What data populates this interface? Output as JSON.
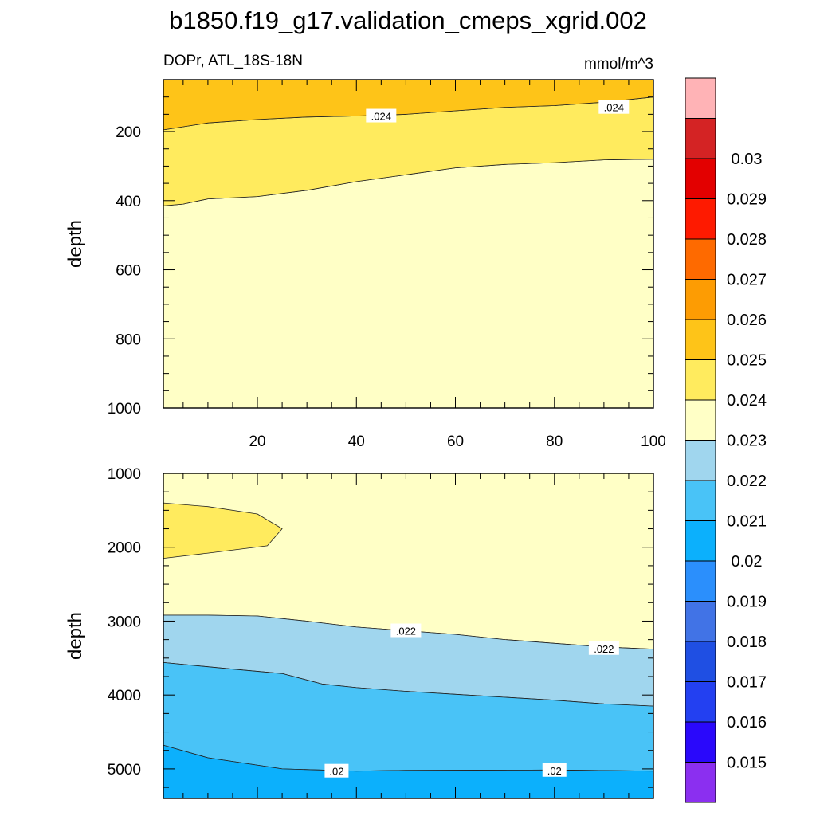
{
  "title": "b1850.f19_g17.validation_cmeps_xgrid.002",
  "chart_data": [
    {
      "type": "contour",
      "subtitle_left": "DOPr, ATL_18S-18N",
      "subtitle_right": "mmol/m^3",
      "ylabel": "depth",
      "xlim": [
        1,
        100
      ],
      "ylim": [
        1000,
        50
      ],
      "y_reversed": true,
      "x_ticks": [
        "20",
        "40",
        "60",
        "80",
        "100"
      ],
      "y_ticks": [
        "200",
        "400",
        "600",
        "800",
        "1000"
      ],
      "regions": [
        {
          "color": "#ffffc6",
          "polygon": [
            [
              1,
              1000
            ],
            [
              100,
              1000
            ],
            [
              100,
              280
            ],
            [
              90,
              282
            ],
            [
              80,
              290
            ],
            [
              70,
              295
            ],
            [
              60,
              305
            ],
            [
              50,
              325
            ],
            [
              40,
              345
            ],
            [
              30,
              370
            ],
            [
              20,
              388
            ],
            [
              10,
              395
            ],
            [
              5,
              410
            ],
            [
              1,
              415
            ]
          ]
        },
        {
          "color": "#ffeb5e",
          "polygon": [
            [
              1,
              415
            ],
            [
              5,
              410
            ],
            [
              10,
              395
            ],
            [
              20,
              388
            ],
            [
              30,
              370
            ],
            [
              40,
              345
            ],
            [
              50,
              325
            ],
            [
              60,
              305
            ],
            [
              70,
              295
            ],
            [
              80,
              290
            ],
            [
              90,
              282
            ],
            [
              100,
              280
            ],
            [
              100,
              100
            ],
            [
              90,
              115
            ],
            [
              80,
              125
            ],
            [
              70,
              130
            ],
            [
              60,
              140
            ],
            [
              50,
              150
            ],
            [
              40,
              155
            ],
            [
              30,
              158
            ],
            [
              20,
              165
            ],
            [
              10,
              175
            ],
            [
              1,
              195
            ]
          ]
        },
        {
          "color": "#fec418",
          "polygon": [
            [
              1,
              195
            ],
            [
              10,
              175
            ],
            [
              20,
              165
            ],
            [
              30,
              158
            ],
            [
              40,
              155
            ],
            [
              50,
              150
            ],
            [
              60,
              140
            ],
            [
              70,
              130
            ],
            [
              80,
              125
            ],
            [
              90,
              115
            ],
            [
              100,
              100
            ],
            [
              100,
              50
            ],
            [
              1,
              50
            ]
          ]
        }
      ],
      "contour_labels": [
        {
          "text": ".024",
          "x": 45,
          "y": 155
        },
        {
          "text": ".024",
          "x": 92,
          "y": 130
        }
      ]
    },
    {
      "type": "contour",
      "ylabel": "depth",
      "xlim": [
        1,
        100
      ],
      "ylim": [
        5400,
        1000
      ],
      "y_reversed": true,
      "y_ticks": [
        "1000",
        "2000",
        "3000",
        "4000",
        "5000"
      ],
      "regions": [
        {
          "color": "#ffffc6",
          "polygon": [
            [
              1,
              1000
            ],
            [
              100,
              1000
            ],
            [
              100,
              3380
            ],
            [
              90,
              3350
            ],
            [
              80,
              3300
            ],
            [
              70,
              3250
            ],
            [
              60,
              3180
            ],
            [
              50,
              3130
            ],
            [
              40,
              3080
            ],
            [
              30,
              3000
            ],
            [
              20,
              2930
            ],
            [
              10,
              2920
            ],
            [
              1,
              2920
            ]
          ]
        },
        {
          "color": "#ffeb5e",
          "polygon": [
            [
              1,
              1400
            ],
            [
              10,
              1450
            ],
            [
              20,
              1550
            ],
            [
              25,
              1750
            ],
            [
              22,
              1980
            ],
            [
              10,
              2080
            ],
            [
              1,
              2150
            ]
          ]
        },
        {
          "color": "#a0d6ee",
          "polygon": [
            [
              1,
              2920
            ],
            [
              10,
              2920
            ],
            [
              20,
              2930
            ],
            [
              30,
              3000
            ],
            [
              40,
              3080
            ],
            [
              50,
              3130
            ],
            [
              60,
              3180
            ],
            [
              70,
              3250
            ],
            [
              80,
              3300
            ],
            [
              90,
              3350
            ],
            [
              100,
              3380
            ],
            [
              100,
              4150
            ],
            [
              90,
              4120
            ],
            [
              80,
              4070
            ],
            [
              70,
              4030
            ],
            [
              60,
              3990
            ],
            [
              50,
              3950
            ],
            [
              40,
              3900
            ],
            [
              33,
              3850
            ],
            [
              25,
              3710
            ],
            [
              15,
              3650
            ],
            [
              1,
              3560
            ]
          ]
        },
        {
          "color": "#49c3f7",
          "polygon": [
            [
              1,
              3560
            ],
            [
              15,
              3650
            ],
            [
              25,
              3710
            ],
            [
              33,
              3850
            ],
            [
              40,
              3900
            ],
            [
              50,
              3950
            ],
            [
              60,
              3990
            ],
            [
              70,
              4030
            ],
            [
              80,
              4070
            ],
            [
              90,
              4120
            ],
            [
              100,
              4150
            ],
            [
              100,
              5030
            ],
            [
              80,
              5015
            ],
            [
              50,
              5020
            ],
            [
              40,
              5030
            ],
            [
              25,
              5000
            ],
            [
              10,
              4850
            ],
            [
              1,
              4680
            ]
          ]
        },
        {
          "color": "#0cb0fc",
          "polygon": [
            [
              1,
              4680
            ],
            [
              10,
              4850
            ],
            [
              25,
              5000
            ],
            [
              40,
              5030
            ],
            [
              50,
              5020
            ],
            [
              80,
              5015
            ],
            [
              100,
              5030
            ],
            [
              100,
              5400
            ],
            [
              1,
              5400
            ]
          ]
        }
      ],
      "contour_labels": [
        {
          "text": ".022",
          "x": 50,
          "y": 3130
        },
        {
          "text": ".022",
          "x": 90,
          "y": 3370
        },
        {
          "text": ".02",
          "x": 36,
          "y": 5030
        },
        {
          "text": ".02",
          "x": 80,
          "y": 5020
        }
      ]
    }
  ],
  "colorbar": {
    "colors": [
      "#8b2ff0",
      "#2a08fb",
      "#2340f1",
      "#1f4fe3",
      "#4173e6",
      "#2b8ffc",
      "#0cb0fc",
      "#49c3f7",
      "#a0d6ee",
      "#ffffc6",
      "#ffeb5e",
      "#fec418",
      "#fd9c03",
      "#fe6a00",
      "#fe1a00",
      "#e30000",
      "#d42324",
      "#ffb3b6"
    ],
    "labels": [
      "0.015",
      "0.016",
      "0.017",
      "0.018",
      "0.019",
      "0.02",
      "0.021",
      "0.022",
      "0.023",
      "0.024",
      "0.025",
      "0.026",
      "0.027",
      "0.028",
      "0.029",
      "0.03"
    ]
  }
}
